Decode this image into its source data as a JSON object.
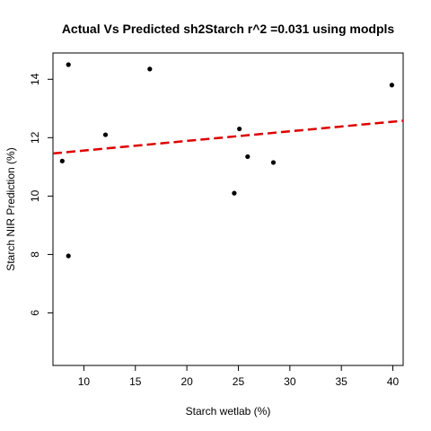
{
  "chart_data": {
    "type": "scatter",
    "title": "Actual Vs Predicted sh2Starch r^2 =0.031 using modpls",
    "xlabel": "Starch wetlab (%)",
    "ylabel": "Starch NIR Prediction (%)",
    "xlim": [
      7.0,
      41.0
    ],
    "ylim": [
      4.2,
      14.9
    ],
    "x_ticks": [
      10,
      15,
      20,
      25,
      30,
      35,
      40
    ],
    "y_ticks": [
      6,
      8,
      10,
      12,
      14
    ],
    "grid": false,
    "legend": "none",
    "points": [
      {
        "x": 8.5,
        "y": 14.5
      },
      {
        "x": 16.4,
        "y": 14.35
      },
      {
        "x": 39.9,
        "y": 13.8
      },
      {
        "x": 25.1,
        "y": 12.3
      },
      {
        "x": 12.1,
        "y": 12.1
      },
      {
        "x": 25.9,
        "y": 11.35
      },
      {
        "x": 7.9,
        "y": 11.2
      },
      {
        "x": 28.4,
        "y": 11.15
      },
      {
        "x": 24.6,
        "y": 10.1
      },
      {
        "x": 8.5,
        "y": 7.95
      }
    ],
    "fit_line": {
      "style": "dashed",
      "color": "#dd0000",
      "x": [
        7.0,
        41.0
      ],
      "y": [
        11.46,
        12.58
      ]
    },
    "point_color": "#000000",
    "axis_color": "#000000"
  }
}
